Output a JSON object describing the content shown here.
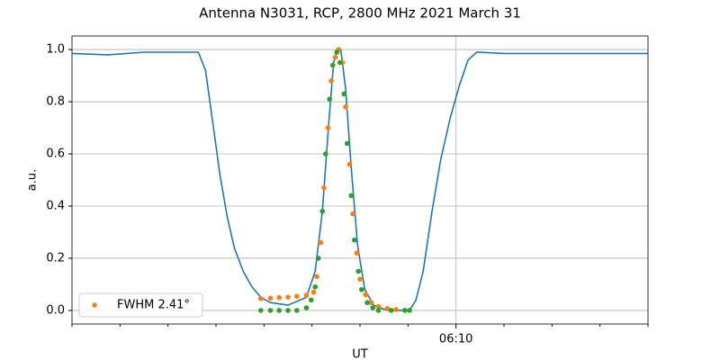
{
  "chart_data": {
    "type": "line",
    "title": "Antenna N3031, RCP, 2800 MHz 2021 March 31",
    "xlabel": "UT",
    "ylabel": "a.u.",
    "xlim": [
      "06:02:00",
      "06:14:00"
    ],
    "xticks": [
      "06:10"
    ],
    "xminorticks": [
      "06:02",
      "06:03",
      "06:04",
      "06:05",
      "06:06",
      "06:07",
      "06:08",
      "06:09",
      "06:11",
      "06:12",
      "06:13",
      "06:14"
    ],
    "ylim": [
      -0.052,
      1.052
    ],
    "yticks": [
      {
        "value": 0,
        "label": "0.0"
      },
      {
        "value": 0.2,
        "label": "0.2"
      },
      {
        "value": 0.4,
        "label": "0.4"
      },
      {
        "value": 0.6,
        "label": "0.6"
      },
      {
        "value": 0.8,
        "label": "0.8"
      },
      {
        "value": 1,
        "label": "1.0"
      }
    ],
    "grid": true,
    "legend": "lower left",
    "series": [
      {
        "type": "line",
        "color": "#1f77b4",
        "x": [
          "06:02:00",
          "06:02:45",
          "06:03:30",
          "06:04:15",
          "06:04:38",
          "06:04:47",
          "06:04:56",
          "06:05:05",
          "06:05:14",
          "06:05:23",
          "06:05:34",
          "06:05:45",
          "06:05:56",
          "06:06:08",
          "06:06:30",
          "06:06:53",
          "06:07:04",
          "06:07:13",
          "06:07:21",
          "06:07:27",
          "06:07:32",
          "06:07:36",
          "06:07:42",
          "06:07:49",
          "06:07:57",
          "06:08:06",
          "06:08:17",
          "06:08:34",
          "06:09:02",
          "06:09:10",
          "06:09:19",
          "06:09:30",
          "06:09:41",
          "06:09:53",
          "06:10:04",
          "06:10:15",
          "06:10:26",
          "06:11:00",
          "06:12:08",
          "06:13:15",
          "06:14:00"
        ],
        "values": [
          0.985,
          0.98,
          0.99,
          0.99,
          0.99,
          0.92,
          0.72,
          0.52,
          0.36,
          0.24,
          0.15,
          0.09,
          0.05,
          0.03,
          0.02,
          0.05,
          0.15,
          0.38,
          0.72,
          0.95,
          1.0,
          1.0,
          0.85,
          0.55,
          0.25,
          0.08,
          0.02,
          0.0,
          0.0,
          0.04,
          0.15,
          0.38,
          0.58,
          0.74,
          0.86,
          0.96,
          0.99,
          0.985,
          0.985,
          0.985,
          0.985
        ]
      },
      {
        "type": "scatter",
        "name": "FWHM 2.41°",
        "color": "#ff7f0e",
        "x": [
          "06:05:56",
          "06:06:08",
          "06:06:19",
          "06:06:30",
          "06:06:41",
          "06:06:53",
          "06:07:02",
          "06:07:06",
          "06:07:11",
          "06:07:15",
          "06:07:20",
          "06:07:24",
          "06:07:29",
          "06:07:33",
          "06:07:38",
          "06:07:42",
          "06:07:47",
          "06:07:51",
          "06:07:56",
          "06:08:00",
          "06:08:07",
          "06:08:14",
          "06:08:23",
          "06:08:34",
          "06:08:45",
          "06:08:56"
        ],
        "values": [
          0.045,
          0.047,
          0.049,
          0.051,
          0.054,
          0.058,
          0.07,
          0.13,
          0.26,
          0.47,
          0.7,
          0.88,
          0.97,
          1.0,
          0.95,
          0.78,
          0.56,
          0.37,
          0.22,
          0.12,
          0.06,
          0.03,
          0.015,
          0.007,
          0.003,
          0.001
        ]
      },
      {
        "type": "scatter",
        "color": "#2ca02c",
        "x": [
          "06:05:56",
          "06:06:08",
          "06:06:19",
          "06:06:30",
          "06:06:41",
          "06:06:53",
          "06:06:59",
          "06:07:04",
          "06:07:08",
          "06:07:13",
          "06:07:17",
          "06:07:22",
          "06:07:26",
          "06:07:31",
          "06:07:35",
          "06:07:40",
          "06:07:44",
          "06:07:49",
          "06:07:53",
          "06:07:58",
          "06:08:02",
          "06:08:09",
          "06:08:16",
          "06:08:23",
          "06:08:39",
          "06:08:56",
          "06:09:02"
        ],
        "values": [
          0,
          0,
          0,
          0,
          0,
          0.01,
          0.04,
          0.09,
          0.2,
          0.38,
          0.6,
          0.81,
          0.94,
          0.99,
          0.95,
          0.83,
          0.64,
          0.44,
          0.27,
          0.15,
          0.08,
          0.03,
          0.01,
          0,
          0,
          0,
          0
        ]
      }
    ]
  }
}
